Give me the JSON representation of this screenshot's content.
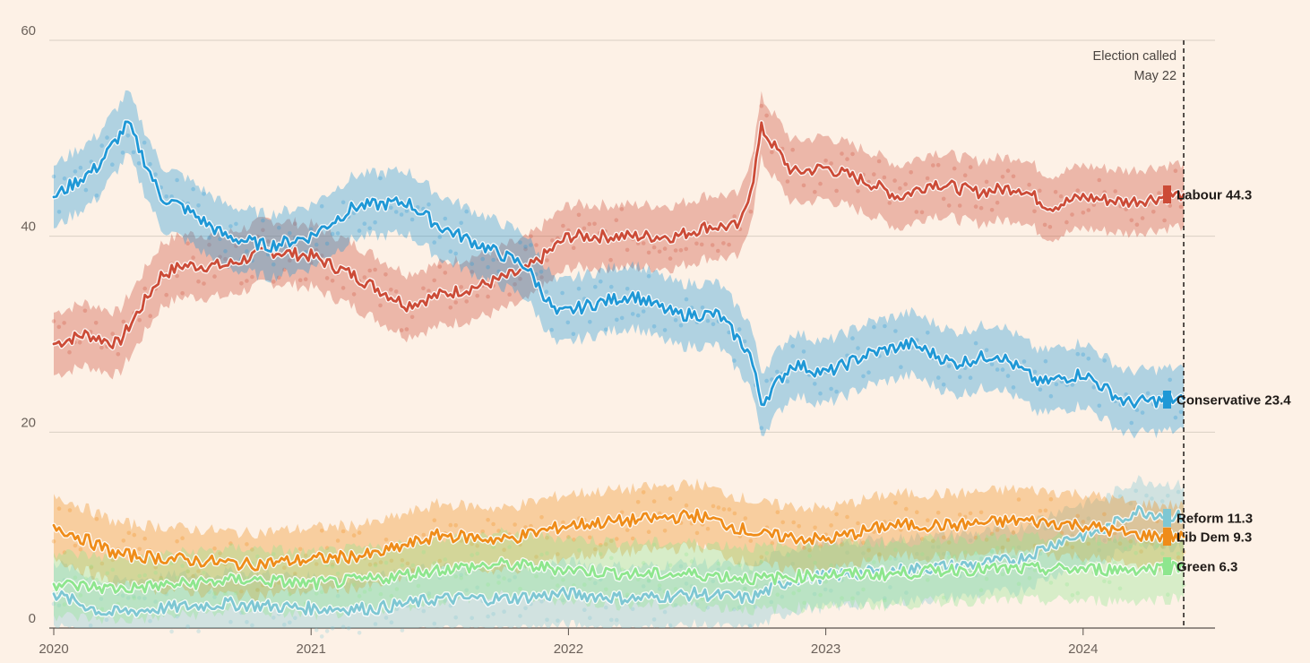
{
  "chart_data": {
    "type": "line",
    "title": "",
    "xlabel": "",
    "ylabel": "",
    "x_ticks": [
      "2020",
      "2021",
      "2022",
      "2023",
      "2024"
    ],
    "y_ticks": [
      "0",
      "20",
      "40",
      "60"
    ],
    "xlim": [
      "2020-01-01",
      "2024-07-01"
    ],
    "ylim": [
      0,
      60
    ],
    "grid": "horizontal",
    "legend_placement": "right (end-of-line labels)",
    "annotation": {
      "date": "2024-05-22",
      "line1": "Election called",
      "line2": "May 22"
    },
    "series": [
      {
        "name": "Labour",
        "label": "Labour 44.3",
        "latest": 44.3,
        "color": "#cc4b37",
        "x": [
          "2020-01-01",
          "2020-02-15",
          "2020-04-01",
          "2020-06-01",
          "2020-07-01",
          "2020-09-01",
          "2020-11-01",
          "2021-01-01",
          "2021-03-01",
          "2021-05-15",
          "2021-07-01",
          "2021-09-01",
          "2021-11-01",
          "2022-01-01",
          "2022-02-15",
          "2022-04-01",
          "2022-06-01",
          "2022-07-15",
          "2022-09-01",
          "2022-09-20",
          "2022-10-01",
          "2022-11-15",
          "2023-01-01",
          "2023-03-01",
          "2023-04-15",
          "2023-06-01",
          "2023-08-01",
          "2023-10-01",
          "2023-11-15",
          "2024-01-01",
          "2024-03-01",
          "2024-05-22"
        ],
        "values": [
          29,
          30,
          29,
          36,
          37,
          37,
          38.5,
          38,
          36,
          33,
          34,
          35,
          36.5,
          40,
          40,
          40,
          40,
          41,
          41,
          46,
          51,
          46.5,
          47,
          45.5,
          44,
          45.5,
          44.5,
          45,
          43,
          44,
          43.5,
          44.3
        ]
      },
      {
        "name": "Conservative",
        "label": "Conservative 23.4",
        "latest": 23.4,
        "color": "#1f98d6",
        "x": [
          "2020-01-01",
          "2020-03-01",
          "2020-04-15",
          "2020-06-01",
          "2020-07-01",
          "2020-09-01",
          "2020-11-01",
          "2021-01-01",
          "2021-03-01",
          "2021-05-15",
          "2021-07-01",
          "2021-09-01",
          "2021-11-01",
          "2021-12-15",
          "2022-02-01",
          "2022-04-01",
          "2022-06-01",
          "2022-08-01",
          "2022-09-15",
          "2022-10-01",
          "2022-11-15",
          "2023-01-01",
          "2023-03-01",
          "2023-05-01",
          "2023-07-01",
          "2023-09-01",
          "2023-11-01",
          "2024-01-01",
          "2024-03-01",
          "2024-05-22"
        ],
        "values": [
          44,
          47,
          51.5,
          44,
          43,
          40,
          39,
          40,
          43,
          43.5,
          41,
          39,
          37,
          32,
          33,
          34,
          32,
          32,
          28,
          23,
          27,
          26,
          28,
          29,
          27,
          28,
          25,
          26,
          23,
          23.4
        ]
      },
      {
        "name": "Reform",
        "label": "Reform 11.3",
        "latest": 11.3,
        "color": "#7ec7d3",
        "x": [
          "2020-01-01",
          "2020-03-15",
          "2020-06-01",
          "2020-09-01",
          "2021-01-01",
          "2021-04-01",
          "2021-07-01",
          "2021-10-01",
          "2022-01-01",
          "2022-04-01",
          "2022-07-01",
          "2022-09-15",
          "2022-11-15",
          "2023-02-01",
          "2023-05-01",
          "2023-08-01",
          "2023-10-01",
          "2023-12-01",
          "2024-02-01",
          "2024-03-15",
          "2024-05-22"
        ],
        "values": [
          3.5,
          1.5,
          2,
          2.5,
          2,
          2,
          3,
          3,
          3.5,
          3,
          3.5,
          3,
          5,
          5.5,
          6,
          6.5,
          7,
          9,
          10,
          12,
          11.3
        ]
      },
      {
        "name": "Lib Dem",
        "label": "Lib Dem 9.3",
        "latest": 9.3,
        "color": "#ef8c19",
        "x": [
          "2020-01-01",
          "2020-04-01",
          "2020-07-01",
          "2020-10-01",
          "2021-01-01",
          "2021-04-01",
          "2021-07-01",
          "2021-10-01",
          "2022-01-01",
          "2022-04-01",
          "2022-07-01",
          "2022-10-01",
          "2023-01-01",
          "2023-04-01",
          "2023-07-01",
          "2023-10-01",
          "2024-01-01",
          "2024-03-15",
          "2024-05-22"
        ],
        "values": [
          10.5,
          7.5,
          7,
          6.5,
          7,
          7.5,
          9.5,
          9,
          10.5,
          11,
          11.5,
          9.5,
          9,
          10.5,
          10.5,
          11,
          10.5,
          9.5,
          9.3
        ]
      },
      {
        "name": "Green",
        "label": "Green 6.3",
        "latest": 6.3,
        "color": "#8ee68e",
        "x": [
          "2020-01-01",
          "2020-04-01",
          "2020-07-01",
          "2020-10-01",
          "2021-01-01",
          "2021-04-01",
          "2021-07-01",
          "2021-10-01",
          "2022-01-01",
          "2022-04-01",
          "2022-07-01",
          "2022-10-01",
          "2023-01-01",
          "2023-04-01",
          "2023-07-01",
          "2023-10-01",
          "2024-01-01",
          "2024-03-15",
          "2024-05-22"
        ],
        "values": [
          4.5,
          4,
          4.5,
          5,
          4.5,
          5,
          6,
          6.5,
          6,
          5.5,
          5.5,
          5,
          5.5,
          5.5,
          6,
          6,
          6,
          6,
          6.3
        ]
      }
    ]
  }
}
